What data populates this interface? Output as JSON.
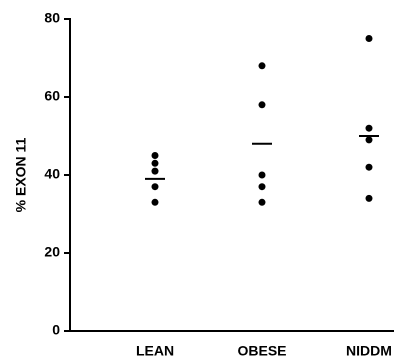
{
  "chart_data": {
    "type": "dot",
    "y_label": "% EXON 11",
    "categories": [
      "LEAN",
      "OBESE",
      "NIDDM"
    ],
    "points": [
      [
        45,
        43,
        41,
        37,
        33
      ],
      [
        68,
        58,
        40,
        37,
        33
      ],
      [
        75,
        52,
        49,
        42,
        34
      ]
    ],
    "means": [
      39,
      48,
      50
    ],
    "color": "#000000",
    "ylim": [
      0,
      80
    ],
    "yticks": [
      0,
      20,
      40,
      60,
      80
    ],
    "grid": false
  }
}
